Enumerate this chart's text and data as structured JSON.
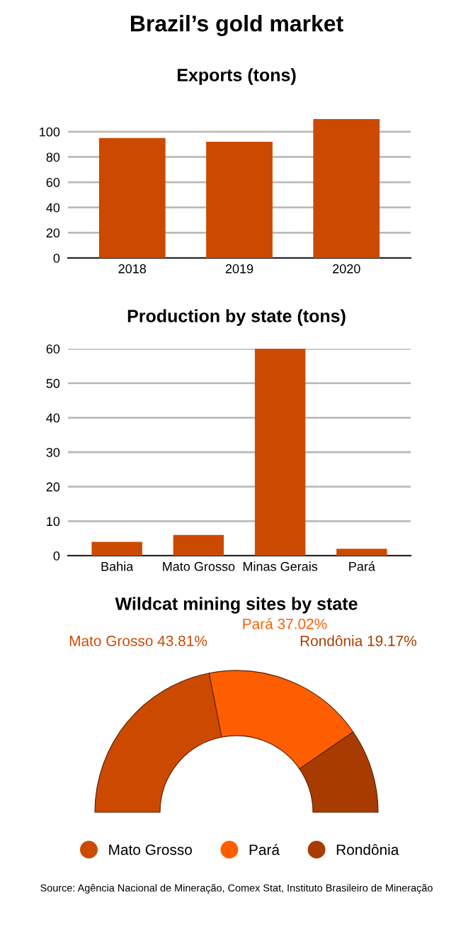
{
  "chart_data": [
    {
      "type": "bar",
      "title": "Brazil’s gold market",
      "subtitle": "Exports (tons)",
      "categories": [
        "2018",
        "2019",
        "2020"
      ],
      "values": [
        95,
        92,
        110
      ],
      "color": "#cc4a00",
      "ylim": [
        0,
        110
      ],
      "yticks": [
        0,
        20,
        40,
        60,
        80,
        100
      ],
      "grid": "y",
      "legend": false
    },
    {
      "type": "bar",
      "title": "Production by state (tons)",
      "categories": [
        "Bahia",
        "Mato Grosso",
        "Minas Gerais",
        "Pará"
      ],
      "values": [
        4,
        6,
        60,
        2
      ],
      "color": "#cc4a00",
      "ylim": [
        0,
        60
      ],
      "yticks": [
        0,
        10,
        20,
        30,
        40,
        50,
        60
      ],
      "grid": "y",
      "legend": false
    },
    {
      "type": "donut",
      "title": "Wildcat mining sites by state",
      "categories": [
        "Mato Grosso",
        "Pará",
        "Rondônia"
      ],
      "values": [
        43.81,
        37.02,
        19.17
      ],
      "value_labels": [
        "43.81%",
        "37.02%",
        "19.17%"
      ],
      "colors": [
        "#cc4a00",
        "#ff5e00",
        "#a83c00"
      ],
      "legend": "bottom",
      "annotations": [
        "Source: Agência Nacional de Mineração, Comex Stat, Instituto Brasileiro de Mineração"
      ]
    }
  ]
}
